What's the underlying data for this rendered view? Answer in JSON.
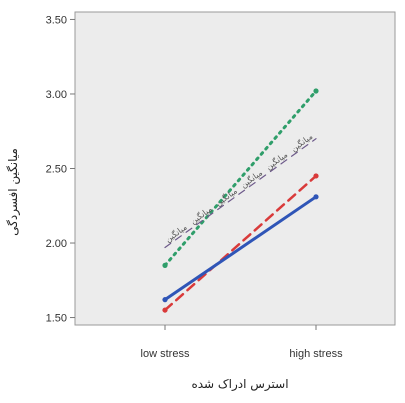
{
  "chart_data": {
    "type": "line",
    "categories": [
      "low stress",
      "high stress"
    ],
    "ylim": [
      1.45,
      3.55
    ],
    "yticks": [
      "1.50",
      "2.00",
      "2.50",
      "3.00",
      "3.50"
    ],
    "xlabel": "استرس ادراک شده",
    "ylabel": "میانگین افسردگی",
    "grid": false,
    "plot_background": "#ececec",
    "series": [
      {
        "values": [
          1.85,
          3.02
        ],
        "color": "#2f9e6a",
        "dash": "2,5",
        "width": 3,
        "marker": "circle"
      },
      {
        "label_text": [
          "میانگین",
          "میانگین",
          "میانگین",
          "میانگین",
          "میانگین",
          "میانگین"
        ],
        "values": [
          1.97,
          2.7
        ],
        "color": "#6d5a8a",
        "dash": "7,6",
        "width": 1.2,
        "marker": "none"
      },
      {
        "values": [
          1.55,
          2.45
        ],
        "color": "#d93a3a",
        "dash": "9,6",
        "width": 2.5,
        "marker": "circle"
      },
      {
        "values": [
          1.62,
          2.31
        ],
        "color": "#2f55b7",
        "dash": "",
        "width": 3,
        "marker": "circle"
      }
    ]
  }
}
